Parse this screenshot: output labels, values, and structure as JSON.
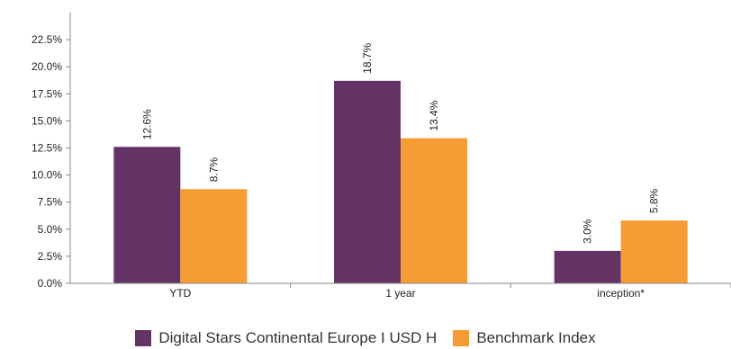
{
  "chart_data": {
    "type": "bar",
    "categories": [
      "YTD",
      "1 year",
      "inception*"
    ],
    "series": [
      {
        "name": "Digital Stars Continental Europe I USD H",
        "values": [
          12.6,
          18.7,
          3.0
        ],
        "labels": [
          "12.6%",
          "18.7%",
          "3.0%"
        ],
        "color": "#643366"
      },
      {
        "name": "Benchmark Index",
        "values": [
          8.7,
          13.4,
          5.8
        ],
        "labels": [
          "8.7%",
          "13.4%",
          "5.8%"
        ],
        "color": "#f59c34"
      }
    ],
    "ylim": [
      0,
      25
    ],
    "yticks": [
      0,
      2.5,
      5,
      7.5,
      10,
      12.5,
      15,
      17.5,
      20,
      22.5
    ],
    "ytick_labels": [
      "0.0%",
      "2.5%",
      "5.0%",
      "7.5%",
      "10.0%",
      "12.5%",
      "15.0%",
      "17.5%",
      "20.0%",
      "22.5%"
    ],
    "grid": false,
    "legend_position": "bottom"
  }
}
